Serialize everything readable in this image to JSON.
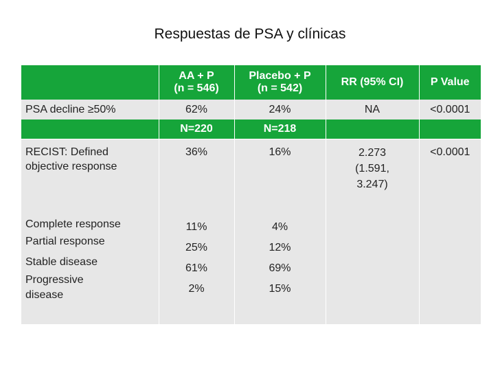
{
  "title": "Respuestas de PSA y clínicas",
  "header": {
    "col1": "",
    "col2_line1": "AA + P",
    "col2_line2": "(n = 546)",
    "col3_line1": "Placebo + P",
    "col3_line2": "(n = 542)",
    "col4": "RR (95% CI)",
    "col5": "P Value"
  },
  "psa_row": {
    "label": "PSA decline ≥50%",
    "aa": "62%",
    "placebo": "24%",
    "rr": "NA",
    "p": "<0.0001"
  },
  "n_row": {
    "aa": "N=220",
    "placebo": "N=218"
  },
  "recist": {
    "label_line1": "RECIST: Defined",
    "label_line2": "objective response",
    "aa": "36%",
    "placebo": "16%",
    "rr_line1": "2.273",
    "rr_line2": "(1.591,",
    "rr_line3": "3.247)",
    "p": "<0.0001"
  },
  "subrows": [
    {
      "label": "Complete response",
      "aa": "11%",
      "placebo": "4%"
    },
    {
      "label": "Partial response",
      "aa": "25%",
      "placebo": "12%"
    },
    {
      "label": "Stable disease",
      "aa": "61%",
      "placebo": "69%"
    },
    {
      "label_line1": "Progressive",
      "label_line2": "disease",
      "aa": "2%",
      "placebo": "15%"
    }
  ]
}
